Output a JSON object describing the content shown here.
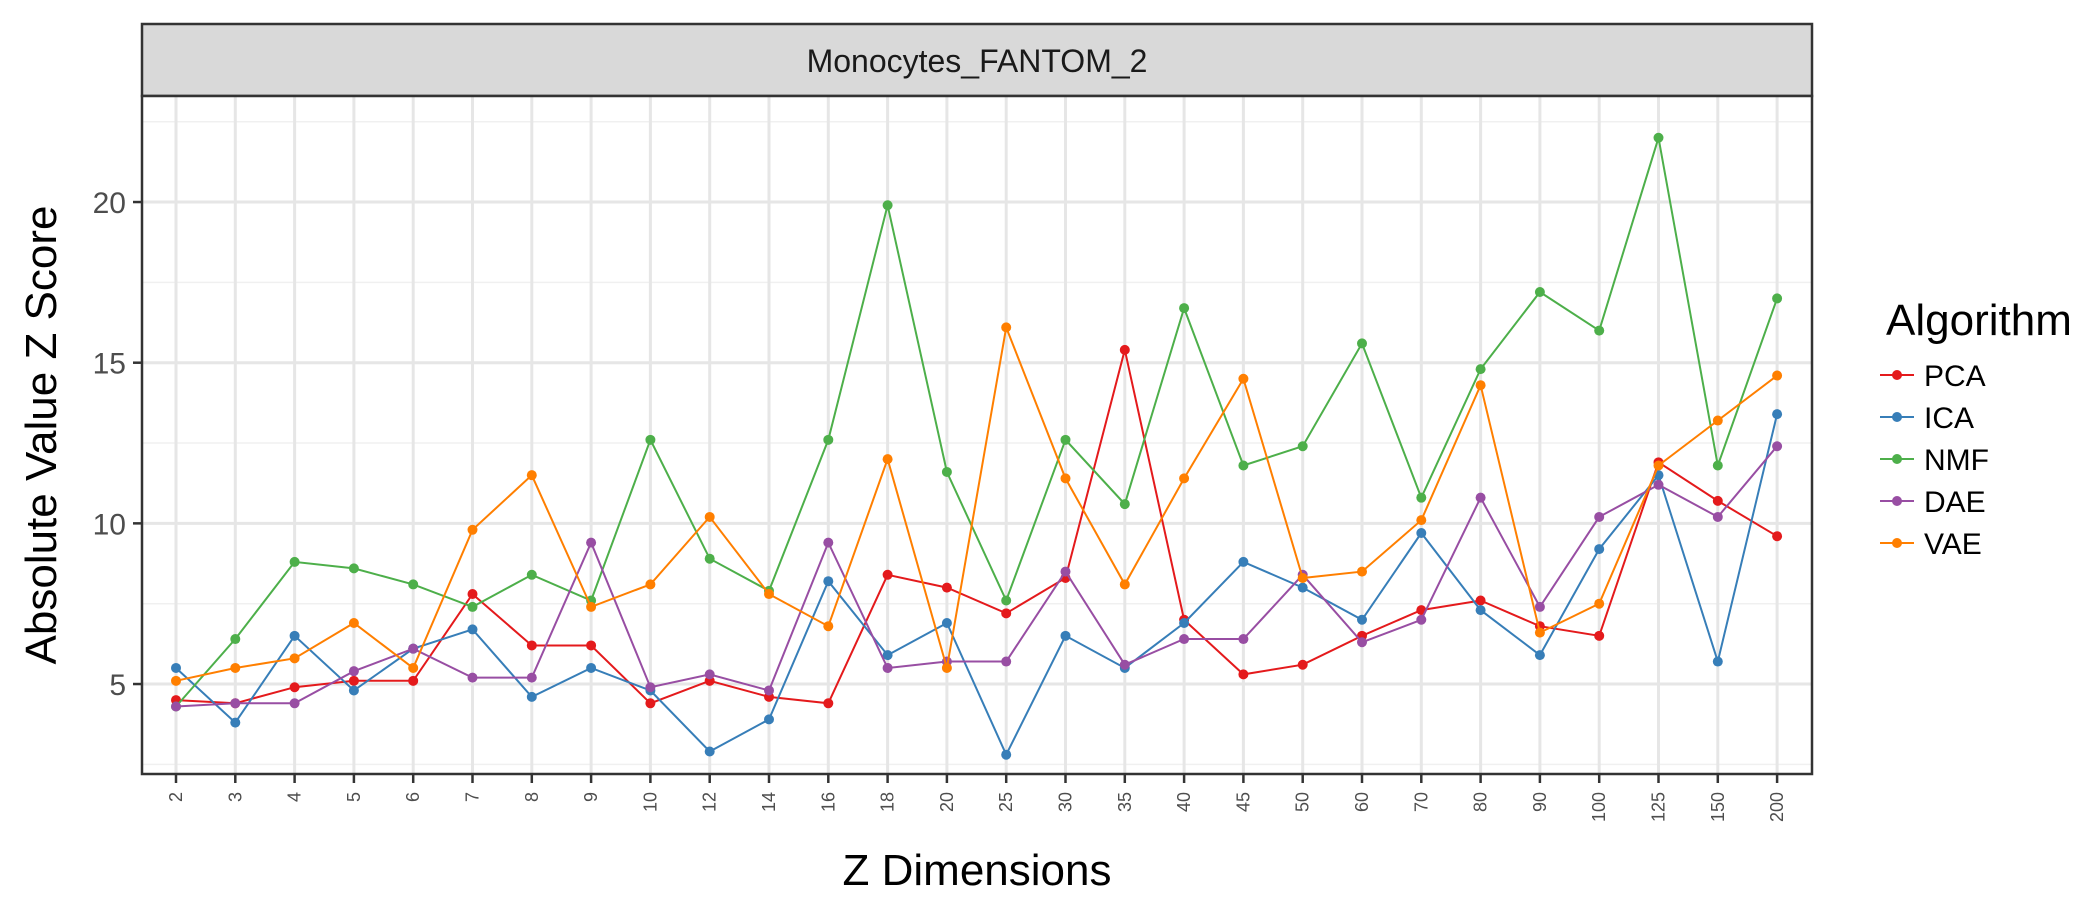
{
  "chart_data": {
    "type": "line",
    "title": "Monocytes_FANTOM_2",
    "xlabel": "Z Dimensions",
    "ylabel": "Absolute Value Z Score",
    "legend_title": "Algorithm",
    "legend_position": "right",
    "grid": true,
    "ylim": [
      2.2,
      23.3
    ],
    "yticks": [
      5,
      10,
      15,
      20
    ],
    "categories": [
      "2",
      "3",
      "4",
      "5",
      "6",
      "7",
      "8",
      "9",
      "10",
      "12",
      "14",
      "16",
      "18",
      "20",
      "25",
      "30",
      "35",
      "40",
      "45",
      "50",
      "60",
      "70",
      "80",
      "90",
      "100",
      "125",
      "150",
      "200"
    ],
    "series": [
      {
        "name": "PCA",
        "color": "#e41a1c",
        "values": [
          4.5,
          4.4,
          4.9,
          5.1,
          5.1,
          7.8,
          6.2,
          6.2,
          4.4,
          5.1,
          4.6,
          4.4,
          8.4,
          8.0,
          7.2,
          8.3,
          15.4,
          7.0,
          5.3,
          5.6,
          6.5,
          7.3,
          7.6,
          6.8,
          6.5,
          11.9,
          10.7,
          9.6
        ]
      },
      {
        "name": "ICA",
        "color": "#377eb8",
        "values": [
          5.5,
          3.8,
          6.5,
          4.8,
          6.1,
          6.7,
          4.6,
          5.5,
          4.8,
          2.9,
          3.9,
          8.2,
          5.9,
          6.9,
          2.8,
          6.5,
          5.5,
          6.9,
          8.8,
          8.0,
          7.0,
          9.7,
          7.3,
          5.9,
          9.2,
          11.5,
          5.7,
          13.4
        ]
      },
      {
        "name": "NMF",
        "color": "#4daf4a",
        "values": [
          4.3,
          6.4,
          8.8,
          8.6,
          8.1,
          7.4,
          8.4,
          7.6,
          12.6,
          8.9,
          7.9,
          12.6,
          19.9,
          11.6,
          7.6,
          12.6,
          10.6,
          16.7,
          11.8,
          12.4,
          15.6,
          10.8,
          14.8,
          17.2,
          16.0,
          22.0,
          11.8,
          17.0
        ]
      },
      {
        "name": "DAE",
        "color": "#984ea3",
        "values": [
          4.3,
          4.4,
          4.4,
          5.4,
          6.1,
          5.2,
          5.2,
          9.4,
          4.9,
          5.3,
          4.8,
          9.4,
          5.5,
          5.7,
          5.7,
          8.5,
          5.6,
          6.4,
          6.4,
          8.4,
          6.3,
          7.0,
          10.8,
          7.4,
          10.2,
          11.2,
          10.2,
          12.4
        ]
      },
      {
        "name": "VAE",
        "color": "#ff7f00",
        "values": [
          5.1,
          5.5,
          5.8,
          6.9,
          5.5,
          9.8,
          11.5,
          7.4,
          8.1,
          10.2,
          7.8,
          6.8,
          12.0,
          5.5,
          16.1,
          11.4,
          8.1,
          11.4,
          14.5,
          8.3,
          8.5,
          10.1,
          14.3,
          6.6,
          7.5,
          11.8,
          13.2,
          14.6
        ]
      }
    ]
  }
}
